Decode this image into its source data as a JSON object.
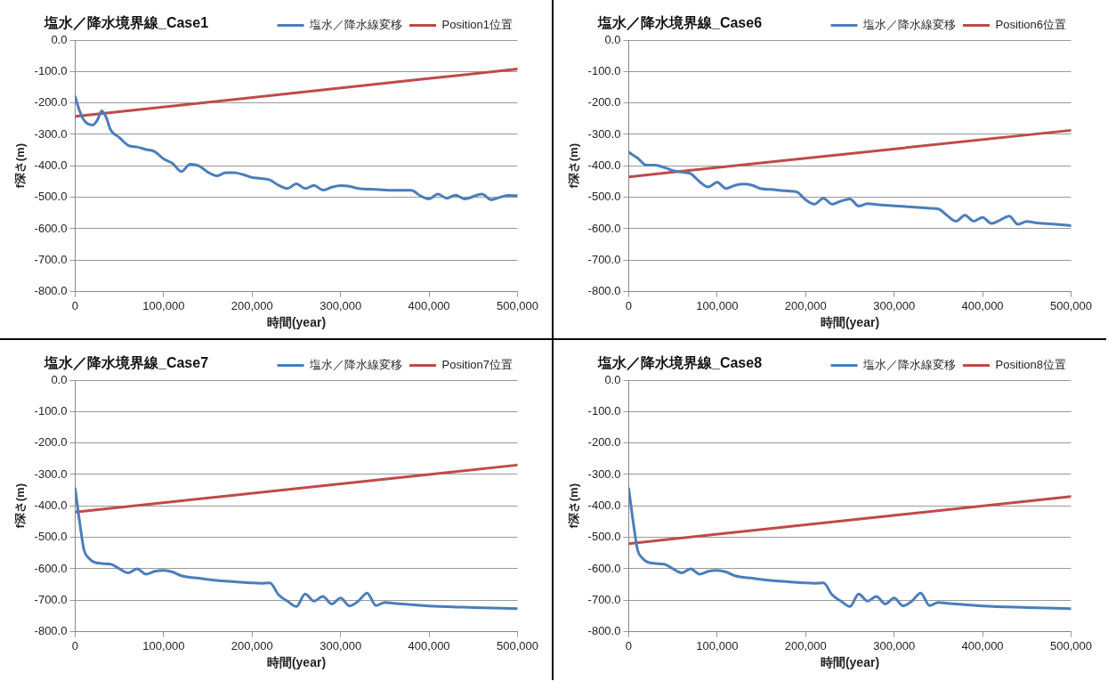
{
  "chart_data": [
    {
      "type": "line",
      "title": "塩水／降水境界線_Case1",
      "xlabel": "時間(year)",
      "ylabel": "f深さ(m)",
      "legend": "top right",
      "grid": "y",
      "marker": "none",
      "line_style": "solid",
      "xlim": [
        0,
        500000
      ],
      "ylim": [
        -800,
        0
      ],
      "xticks": [
        {
          "value": 0,
          "label": "0"
        },
        {
          "value": 100000,
          "label": "100,000"
        },
        {
          "value": 200000,
          "label": "200,000"
        },
        {
          "value": 300000,
          "label": "300,000"
        },
        {
          "value": 400000,
          "label": "400,000"
        },
        {
          "value": 500000,
          "label": "500,000"
        }
      ],
      "yticks": [
        {
          "value": 0,
          "label": "0.0"
        },
        {
          "value": -100,
          "label": "-100.0"
        },
        {
          "value": -200,
          "label": "-200.0"
        },
        {
          "value": -300,
          "label": "-300.0"
        },
        {
          "value": -400,
          "label": "-400.0"
        },
        {
          "value": -500,
          "label": "-500.0"
        },
        {
          "value": -600,
          "label": "-600.0"
        },
        {
          "value": -700,
          "label": "-700.0"
        },
        {
          "value": -800,
          "label": "-800.0"
        }
      ],
      "series": [
        {
          "name": "塩水／降水線変移",
          "color": "#4a7ebb",
          "x": [
            0,
            5000,
            10000,
            20000,
            25000,
            30000,
            35000,
            40000,
            50000,
            60000,
            70000,
            80000,
            90000,
            100000,
            110000,
            120000,
            130000,
            140000,
            150000,
            160000,
            170000,
            180000,
            190000,
            200000,
            210000,
            220000,
            230000,
            240000,
            250000,
            260000,
            270000,
            280000,
            290000,
            300000,
            310000,
            320000,
            340000,
            360000,
            380000,
            390000,
            400000,
            410000,
            420000,
            430000,
            440000,
            460000,
            470000,
            480000,
            490000,
            500000
          ],
          "values": [
            -180,
            -225,
            -255,
            -270,
            -255,
            -225,
            -245,
            -285,
            -310,
            -335,
            -340,
            -348,
            -355,
            -378,
            -392,
            -418,
            -395,
            -400,
            -420,
            -432,
            -422,
            -422,
            -428,
            -437,
            -440,
            -445,
            -462,
            -472,
            -457,
            -472,
            -462,
            -477,
            -468,
            -463,
            -465,
            -472,
            -475,
            -478,
            -478,
            -495,
            -505,
            -490,
            -503,
            -493,
            -505,
            -490,
            -508,
            -500,
            -494,
            -495
          ]
        },
        {
          "name": "Position1位置",
          "color": "#be4b48",
          "x": [
            0,
            500000
          ],
          "values": [
            -243,
            -92
          ]
        }
      ]
    },
    {
      "type": "line",
      "title": "塩水／降水境界線_Case6",
      "xlabel": "時間(year)",
      "ylabel": "f深さ(m)",
      "legend": "top right",
      "grid": "y",
      "marker": "none",
      "line_style": "solid",
      "xlim": [
        0,
        500000
      ],
      "ylim": [
        -800,
        0
      ],
      "xticks": [
        {
          "value": 0,
          "label": "0"
        },
        {
          "value": 100000,
          "label": "100,000"
        },
        {
          "value": 200000,
          "label": "200,000"
        },
        {
          "value": 300000,
          "label": "300,000"
        },
        {
          "value": 400000,
          "label": "400,000"
        },
        {
          "value": 500000,
          "label": "500,000"
        }
      ],
      "yticks": [
        {
          "value": 0,
          "label": "0.0"
        },
        {
          "value": -100,
          "label": "-100.0"
        },
        {
          "value": -200,
          "label": "-200.0"
        },
        {
          "value": -300,
          "label": "-300.0"
        },
        {
          "value": -400,
          "label": "-400.0"
        },
        {
          "value": -500,
          "label": "-500.0"
        },
        {
          "value": -600,
          "label": "-600.0"
        },
        {
          "value": -700,
          "label": "-700.0"
        },
        {
          "value": -800,
          "label": "-800.0"
        }
      ],
      "series": [
        {
          "name": "塩水／降水線変移",
          "color": "#4a7ebb",
          "x": [
            0,
            10000,
            20000,
            30000,
            40000,
            50000,
            60000,
            70000,
            80000,
            90000,
            100000,
            110000,
            120000,
            130000,
            140000,
            150000,
            160000,
            180000,
            190000,
            200000,
            210000,
            220000,
            230000,
            240000,
            250000,
            260000,
            270000,
            280000,
            300000,
            320000,
            340000,
            350000,
            360000,
            370000,
            380000,
            390000,
            400000,
            410000,
            420000,
            430000,
            440000,
            450000,
            460000,
            480000,
            500000
          ],
          "values": [
            -357,
            -375,
            -398,
            -398,
            -405,
            -415,
            -420,
            -425,
            -450,
            -467,
            -452,
            -472,
            -462,
            -458,
            -462,
            -473,
            -475,
            -480,
            -483,
            -508,
            -522,
            -503,
            -522,
            -512,
            -505,
            -528,
            -520,
            -523,
            -527,
            -531,
            -535,
            -537,
            -558,
            -576,
            -557,
            -576,
            -564,
            -583,
            -572,
            -560,
            -586,
            -577,
            -581,
            -585,
            -590
          ]
        },
        {
          "name": "Position6位置",
          "color": "#be4b48",
          "x": [
            0,
            500000
          ],
          "values": [
            -435,
            -287
          ]
        }
      ]
    },
    {
      "type": "line",
      "title": "塩水／降水境界線_Case7",
      "xlabel": "時間(year)",
      "ylabel": "f深さ(m)",
      "legend": "top right",
      "grid": "y",
      "marker": "none",
      "line_style": "solid",
      "xlim": [
        0,
        500000
      ],
      "ylim": [
        -800,
        0
      ],
      "xticks": [
        {
          "value": 0,
          "label": "0"
        },
        {
          "value": 100000,
          "label": "100,000"
        },
        {
          "value": 200000,
          "label": "200,000"
        },
        {
          "value": 300000,
          "label": "300,000"
        },
        {
          "value": 400000,
          "label": "400,000"
        },
        {
          "value": 500000,
          "label": "500,000"
        }
      ],
      "yticks": [
        {
          "value": 0,
          "label": "0.0"
        },
        {
          "value": -100,
          "label": "-100.0"
        },
        {
          "value": -200,
          "label": "-200.0"
        },
        {
          "value": -300,
          "label": "-300.0"
        },
        {
          "value": -400,
          "label": "-400.0"
        },
        {
          "value": -500,
          "label": "-500.0"
        },
        {
          "value": -600,
          "label": "-600.0"
        },
        {
          "value": -700,
          "label": "-700.0"
        },
        {
          "value": -800,
          "label": "-800.0"
        }
      ],
      "series": [
        {
          "name": "塩水／降水線変移",
          "color": "#4a7ebb",
          "x": [
            0,
            5000,
            10000,
            15000,
            25000,
            40000,
            50000,
            60000,
            70000,
            80000,
            90000,
            100000,
            110000,
            120000,
            140000,
            160000,
            180000,
            200000,
            210000,
            220000,
            230000,
            240000,
            250000,
            260000,
            270000,
            280000,
            290000,
            300000,
            310000,
            320000,
            330000,
            340000,
            350000,
            360000,
            400000,
            450000,
            500000
          ],
          "values": [
            -345,
            -450,
            -540,
            -565,
            -582,
            -585,
            -600,
            -613,
            -600,
            -617,
            -608,
            -605,
            -610,
            -622,
            -630,
            -637,
            -641,
            -645,
            -646,
            -645,
            -683,
            -703,
            -720,
            -680,
            -703,
            -688,
            -712,
            -693,
            -718,
            -703,
            -677,
            -717,
            -707,
            -710,
            -718,
            -723,
            -727
          ]
        },
        {
          "name": "Position7位置",
          "color": "#be4b48",
          "x": [
            0,
            500000
          ],
          "values": [
            -420,
            -270
          ]
        }
      ]
    },
    {
      "type": "line",
      "title": "塩水／降水境界線_Case8",
      "xlabel": "時間(year)",
      "ylabel": "f深さ(m)",
      "legend": "top right",
      "grid": "y",
      "marker": "none",
      "line_style": "solid",
      "xlim": [
        0,
        500000
      ],
      "ylim": [
        -800,
        0
      ],
      "xticks": [
        {
          "value": 0,
          "label": "0"
        },
        {
          "value": 100000,
          "label": "100,000"
        },
        {
          "value": 200000,
          "label": "200,000"
        },
        {
          "value": 300000,
          "label": "300,000"
        },
        {
          "value": 400000,
          "label": "400,000"
        },
        {
          "value": 500000,
          "label": "500,000"
        }
      ],
      "yticks": [
        {
          "value": 0,
          "label": "0.0"
        },
        {
          "value": -100,
          "label": "-100.0"
        },
        {
          "value": -200,
          "label": "-200.0"
        },
        {
          "value": -300,
          "label": "-300.0"
        },
        {
          "value": -400,
          "label": "-400.0"
        },
        {
          "value": -500,
          "label": "-500.0"
        },
        {
          "value": -600,
          "label": "-600.0"
        },
        {
          "value": -700,
          "label": "-700.0"
        },
        {
          "value": -800,
          "label": "-800.0"
        }
      ],
      "series": [
        {
          "name": "塩水／降水線変移",
          "color": "#4a7ebb",
          "x": [
            0,
            5000,
            10000,
            15000,
            25000,
            40000,
            50000,
            60000,
            70000,
            80000,
            90000,
            100000,
            110000,
            120000,
            140000,
            160000,
            180000,
            200000,
            210000,
            220000,
            230000,
            240000,
            250000,
            260000,
            270000,
            280000,
            290000,
            300000,
            310000,
            320000,
            330000,
            340000,
            350000,
            360000,
            400000,
            450000,
            500000
          ],
          "values": [
            -345,
            -450,
            -540,
            -565,
            -582,
            -585,
            -600,
            -613,
            -600,
            -617,
            -608,
            -605,
            -610,
            -622,
            -630,
            -637,
            -641,
            -645,
            -646,
            -645,
            -683,
            -703,
            -720,
            -680,
            -703,
            -688,
            -712,
            -693,
            -718,
            -703,
            -677,
            -717,
            -707,
            -710,
            -718,
            -723,
            -727
          ]
        },
        {
          "name": "Position8位置",
          "color": "#be4b48",
          "x": [
            0,
            500000
          ],
          "values": [
            -520,
            -370
          ]
        }
      ]
    }
  ]
}
